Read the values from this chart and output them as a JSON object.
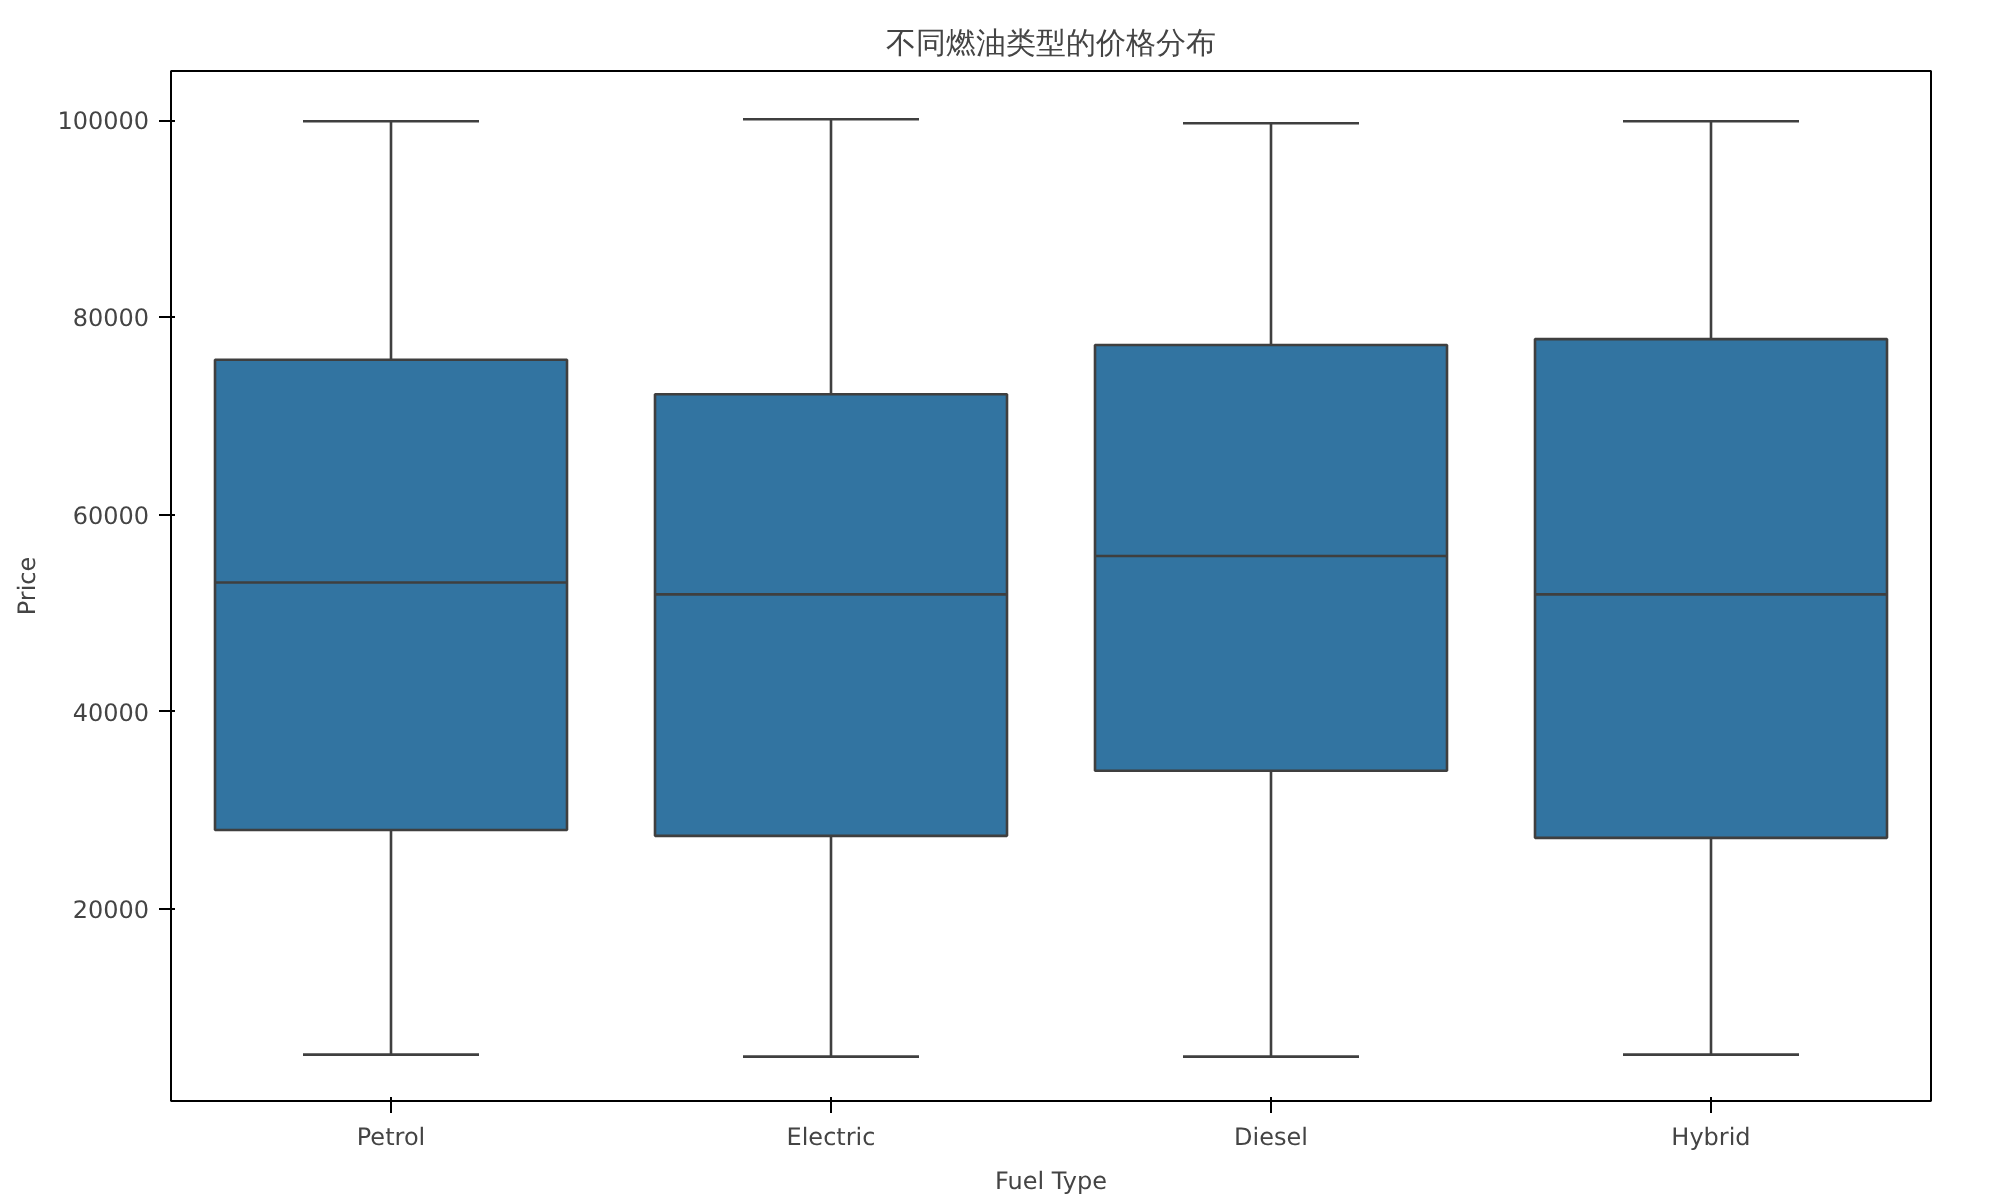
{
  "chart_data": {
    "type": "box",
    "title": "不同燃油类型的价格分布",
    "xlabel": "Fuel Type",
    "ylabel": "Price",
    "categories": [
      "Petrol",
      "Electric",
      "Diesel",
      "Hybrid"
    ],
    "series": [
      {
        "color": "#3274a1",
        "boxes": [
          {
            "low": 5200,
            "q1": 28000,
            "median": 53100,
            "q3": 75700,
            "high": 99900
          },
          {
            "low": 5000,
            "q1": 27400,
            "median": 51900,
            "q3": 72200,
            "high": 100100
          },
          {
            "low": 5000,
            "q1": 34000,
            "median": 55800,
            "q3": 77200,
            "high": 99700
          },
          {
            "low": 5200,
            "q1": 27200,
            "median": 51900,
            "q3": 77800,
            "high": 99900
          }
        ]
      }
    ],
    "ylim": [
      500,
      105000
    ],
    "yticks": [
      20000,
      40000,
      60000,
      80000,
      100000
    ],
    "grid": false
  }
}
